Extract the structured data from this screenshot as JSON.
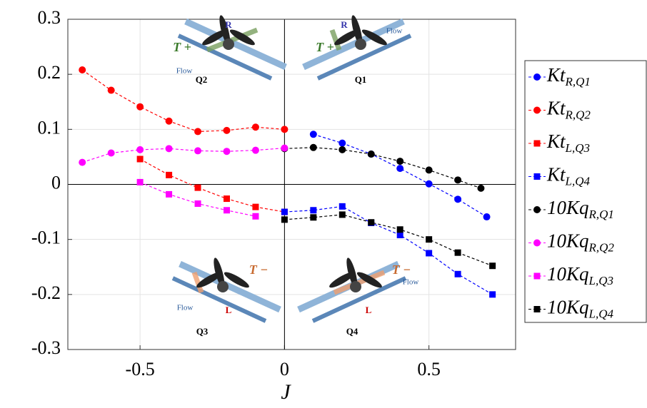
{
  "chart_data": {
    "type": "line",
    "x_label": "J",
    "xlim": [
      -0.75,
      0.8
    ],
    "ylim": [
      -0.3,
      0.3
    ],
    "xticks": [
      -0.5,
      0,
      0.5
    ],
    "yticks": [
      -0.3,
      -0.2,
      -0.1,
      0,
      0.1,
      0.2,
      0.3
    ],
    "grid": true,
    "legend": "right",
    "series": [
      {
        "name": "Kt",
        "subscript": "R,Q1",
        "color": "#0000ff",
        "marker": "circle",
        "x": [
          0.1,
          0.2,
          0.3,
          0.4,
          0.5,
          0.6,
          0.7
        ],
        "values": [
          0.091,
          0.075,
          0.055,
          0.029,
          0.001,
          -0.027,
          -0.059
        ]
      },
      {
        "name": "Kt",
        "subscript": "R,Q2",
        "color": "#ff0000",
        "marker": "circle",
        "x": [
          -0.7,
          -0.6,
          -0.5,
          -0.4,
          -0.3,
          -0.2,
          -0.1,
          0
        ],
        "values": [
          0.208,
          0.171,
          0.141,
          0.115,
          0.096,
          0.098,
          0.104,
          0.1
        ]
      },
      {
        "name": "Kt",
        "subscript": "L,Q3",
        "color": "#ff0000",
        "marker": "square",
        "x": [
          -0.5,
          -0.4,
          -0.3,
          -0.2,
          -0.1,
          0
        ],
        "values": [
          0.046,
          0.017,
          -0.006,
          -0.026,
          -0.041,
          -0.05
        ]
      },
      {
        "name": "Kt",
        "subscript": "L,Q4",
        "color": "#0000ff",
        "marker": "square",
        "x": [
          0,
          0.1,
          0.2,
          0.3,
          0.4,
          0.5,
          0.6,
          0.72
        ],
        "values": [
          -0.05,
          -0.047,
          -0.04,
          -0.07,
          -0.092,
          -0.125,
          -0.163,
          -0.2
        ]
      },
      {
        "name": "10Kq",
        "subscript": "R,Q1",
        "color": "#000000",
        "marker": "circle",
        "x": [
          0,
          0.1,
          0.2,
          0.3,
          0.4,
          0.5,
          0.6,
          0.68
        ],
        "values": [
          0.065,
          0.067,
          0.063,
          0.055,
          0.042,
          0.026,
          0.008,
          -0.007
        ]
      },
      {
        "name": "10Kq",
        "subscript": "R,Q2",
        "color": "#ff00ff",
        "marker": "circle",
        "x": [
          -0.7,
          -0.6,
          -0.5,
          -0.4,
          -0.3,
          -0.2,
          -0.1,
          0
        ],
        "values": [
          0.04,
          0.057,
          0.063,
          0.065,
          0.061,
          0.06,
          0.062,
          0.066
        ]
      },
      {
        "name": "10Kq",
        "subscript": "L,Q3",
        "color": "#ff00ff",
        "marker": "square",
        "x": [
          -0.5,
          -0.4,
          -0.3,
          -0.2,
          -0.1
        ],
        "values": [
          0.004,
          -0.018,
          -0.035,
          -0.047,
          -0.058
        ]
      },
      {
        "name": "10Kq",
        "subscript": "L,Q4",
        "color": "#000000",
        "marker": "square",
        "x": [
          0,
          0.1,
          0.2,
          0.3,
          0.4,
          0.5,
          0.6,
          0.72
        ],
        "values": [
          -0.064,
          -0.06,
          -0.055,
          -0.069,
          -0.082,
          -0.1,
          -0.124,
          -0.148
        ]
      }
    ],
    "annotations": [
      "Q2",
      "Q1",
      "Q3",
      "Q4",
      "T +",
      "T +",
      "T −",
      "T −",
      "R",
      "R",
      "L",
      "L",
      "Flow",
      "Flow",
      "Flow",
      "Flow"
    ]
  }
}
